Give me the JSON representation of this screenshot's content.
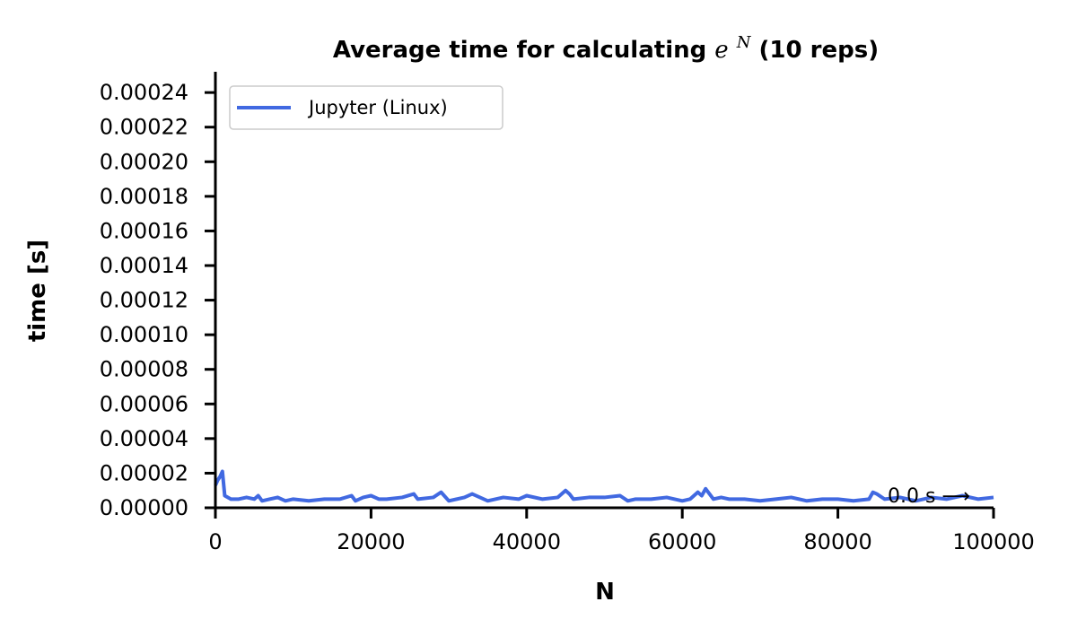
{
  "chart_data": {
    "type": "line",
    "title_prefix": "Average time for calculating ",
    "title_math_base": "e",
    "title_math_exp": "N",
    "title_suffix": " (10 reps)",
    "xlabel": "N",
    "ylabel": "time [s]",
    "xlim": [
      0,
      100000
    ],
    "ylim": [
      0,
      0.000252
    ],
    "xticks": [
      0,
      20000,
      40000,
      60000,
      80000,
      100000
    ],
    "xtick_labels": [
      "0",
      "20000",
      "40000",
      "60000",
      "80000",
      "100000"
    ],
    "yticks": [
      0,
      2e-05,
      4e-05,
      6e-05,
      8e-05,
      0.0001,
      0.00012,
      0.00014,
      0.00016,
      0.00018,
      0.0002,
      0.00022,
      0.00024
    ],
    "ytick_labels": [
      "0.00000",
      "0.00002",
      "0.00004",
      "0.00006",
      "0.00008",
      "0.00010",
      "0.00012",
      "0.00014",
      "0.00016",
      "0.00018",
      "0.00020",
      "0.00022",
      "0.00024"
    ],
    "grid": false,
    "legend_position": "top-left",
    "annotation": {
      "text": "0.0 s ⟶",
      "x": 97000,
      "y": 3e-06
    },
    "series": [
      {
        "name": "Jupyter (Linux)",
        "color": "#4169e1",
        "x": [
          0,
          300,
          600,
          900,
          1200,
          2000,
          3000,
          4000,
          5000,
          5500,
          6000,
          7000,
          8000,
          9000,
          10000,
          12000,
          14000,
          16000,
          17500,
          18000,
          19000,
          20000,
          21000,
          22000,
          24000,
          25500,
          26000,
          28000,
          29000,
          30000,
          32000,
          33000,
          35000,
          37000,
          39000,
          40000,
          42000,
          44000,
          45000,
          45500,
          46000,
          48000,
          50000,
          52000,
          53000,
          54000,
          56000,
          58000,
          60000,
          61000,
          62000,
          62500,
          63000,
          63500,
          64000,
          65000,
          66000,
          68000,
          70000,
          72000,
          74000,
          76000,
          78000,
          80000,
          82000,
          84000,
          84500,
          85000,
          86000,
          88000,
          90000,
          92000,
          94000,
          96000,
          98000,
          100000
        ],
        "y": [
          1.3e-05,
          1.6e-05,
          1.8e-05,
          2.1e-05,
          7e-06,
          5e-06,
          5e-06,
          6e-06,
          5e-06,
          7e-06,
          4e-06,
          5e-06,
          6e-06,
          4e-06,
          5e-06,
          4e-06,
          5e-06,
          5e-06,
          7e-06,
          4e-06,
          6e-06,
          7e-06,
          5e-06,
          5e-06,
          6e-06,
          8e-06,
          5e-06,
          6e-06,
          9e-06,
          4e-06,
          6e-06,
          8e-06,
          4e-06,
          6e-06,
          5e-06,
          7e-06,
          5e-06,
          6e-06,
          1e-05,
          8e-06,
          5e-06,
          6e-06,
          6e-06,
          7e-06,
          4e-06,
          5e-06,
          5e-06,
          6e-06,
          4e-06,
          5e-06,
          9e-06,
          7e-06,
          1.1e-05,
          8e-06,
          5e-06,
          6e-06,
          5e-06,
          5e-06,
          4e-06,
          5e-06,
          6e-06,
          4e-06,
          5e-06,
          5e-06,
          4e-06,
          5e-06,
          9e-06,
          8e-06,
          5e-06,
          6e-06,
          4e-06,
          6e-06,
          5e-06,
          7e-06,
          5e-06,
          6e-06
        ]
      }
    ]
  }
}
